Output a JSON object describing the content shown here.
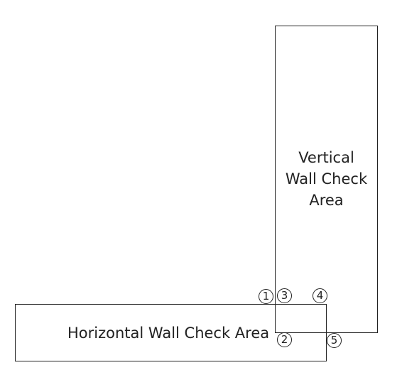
{
  "areas": {
    "vertical": {
      "label_lines": [
        "Vertical",
        "Wall Check",
        "Area"
      ]
    },
    "horizontal": {
      "label": "Horizontal Wall Check Area"
    }
  },
  "markers": {
    "m1": "1",
    "m2": "2",
    "m3": "3",
    "m4": "4",
    "m5": "5"
  },
  "colors": {
    "line": "#222222",
    "background": "#ffffff"
  }
}
